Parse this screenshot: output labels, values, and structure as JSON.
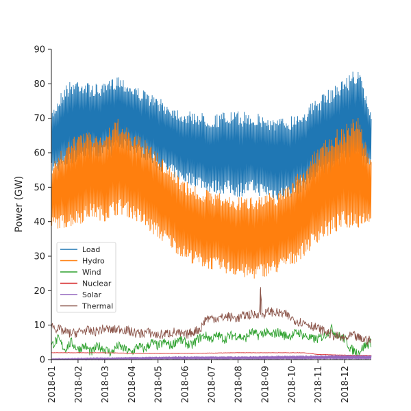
{
  "chart_data": {
    "type": "line",
    "title": "",
    "xlabel": "",
    "ylabel": "Power (GW)",
    "ylim": [
      0,
      90
    ],
    "yticks": [
      0,
      10,
      20,
      30,
      40,
      50,
      60,
      70,
      80,
      90
    ],
    "x_tick_labels": [
      "2018-01",
      "2018-02",
      "2018-03",
      "2018-04",
      "2018-05",
      "2018-06",
      "2018-07",
      "2018-08",
      "2018-09",
      "2018-10",
      "2018-11",
      "2018-12"
    ],
    "x_note": "x values are months of 2018 (0 = Jan 1, 12 = Dec 31); y values are power in GW. Hourly series shown as a weekly/daily envelope (min, max) plus a mid line for Wind/Thermal.",
    "legend_position": "left",
    "series": [
      {
        "name": "Load",
        "color": "#1f77b4",
        "envelope": [
          {
            "x": 0.0,
            "min": 54,
            "max": 72
          },
          {
            "x": 0.5,
            "min": 55,
            "max": 80
          },
          {
            "x": 1.0,
            "min": 57,
            "max": 82
          },
          {
            "x": 1.5,
            "min": 58,
            "max": 80
          },
          {
            "x": 2.0,
            "min": 58,
            "max": 80
          },
          {
            "x": 2.5,
            "min": 60,
            "max": 83
          },
          {
            "x": 3.0,
            "min": 60,
            "max": 80
          },
          {
            "x": 3.5,
            "min": 58,
            "max": 78
          },
          {
            "x": 4.0,
            "min": 55,
            "max": 76
          },
          {
            "x": 4.5,
            "min": 53,
            "max": 74
          },
          {
            "x": 5.0,
            "min": 51,
            "max": 72
          },
          {
            "x": 5.5,
            "min": 50,
            "max": 72
          },
          {
            "x": 6.0,
            "min": 48,
            "max": 71
          },
          {
            "x": 6.5,
            "min": 48,
            "max": 72
          },
          {
            "x": 7.0,
            "min": 47,
            "max": 72
          },
          {
            "x": 7.5,
            "min": 48,
            "max": 72
          },
          {
            "x": 8.0,
            "min": 47,
            "max": 71
          },
          {
            "x": 8.5,
            "min": 46,
            "max": 70
          },
          {
            "x": 9.0,
            "min": 47,
            "max": 71
          },
          {
            "x": 9.5,
            "min": 49,
            "max": 73
          },
          {
            "x": 10.0,
            "min": 52,
            "max": 76
          },
          {
            "x": 10.5,
            "min": 54,
            "max": 79
          },
          {
            "x": 11.0,
            "min": 56,
            "max": 82
          },
          {
            "x": 11.5,
            "min": 57,
            "max": 85
          },
          {
            "x": 12.0,
            "min": 55,
            "max": 72
          }
        ]
      },
      {
        "name": "Hydro",
        "color": "#ff7f0e",
        "envelope": [
          {
            "x": 0.0,
            "min": 38,
            "max": 57
          },
          {
            "x": 0.5,
            "min": 38,
            "max": 62
          },
          {
            "x": 1.0,
            "min": 39,
            "max": 66
          },
          {
            "x": 1.5,
            "min": 41,
            "max": 66
          },
          {
            "x": 2.0,
            "min": 40,
            "max": 66
          },
          {
            "x": 2.5,
            "min": 42,
            "max": 70
          },
          {
            "x": 3.0,
            "min": 41,
            "max": 66
          },
          {
            "x": 3.5,
            "min": 38,
            "max": 64
          },
          {
            "x": 4.0,
            "min": 35,
            "max": 60
          },
          {
            "x": 4.5,
            "min": 32,
            "max": 56
          },
          {
            "x": 5.0,
            "min": 29,
            "max": 52
          },
          {
            "x": 5.5,
            "min": 27,
            "max": 50
          },
          {
            "x": 6.0,
            "min": 26,
            "max": 49
          },
          {
            "x": 6.5,
            "min": 25,
            "max": 48
          },
          {
            "x": 7.0,
            "min": 24,
            "max": 47
          },
          {
            "x": 7.5,
            "min": 23,
            "max": 48
          },
          {
            "x": 8.0,
            "min": 24,
            "max": 48
          },
          {
            "x": 8.5,
            "min": 25,
            "max": 49
          },
          {
            "x": 9.0,
            "min": 27,
            "max": 52
          },
          {
            "x": 9.5,
            "min": 30,
            "max": 56
          },
          {
            "x": 10.0,
            "min": 34,
            "max": 62
          },
          {
            "x": 10.5,
            "min": 36,
            "max": 66
          },
          {
            "x": 11.0,
            "min": 38,
            "max": 68
          },
          {
            "x": 11.5,
            "min": 38,
            "max": 71
          },
          {
            "x": 12.0,
            "min": 40,
            "max": 58
          }
        ]
      },
      {
        "name": "Wind",
        "color": "#2ca02c",
        "line": [
          {
            "x": 0.0,
            "y": 4
          },
          {
            "x": 0.25,
            "y": 6
          },
          {
            "x": 0.5,
            "y": 3
          },
          {
            "x": 0.75,
            "y": 5
          },
          {
            "x": 1.0,
            "y": 3
          },
          {
            "x": 1.25,
            "y": 4
          },
          {
            "x": 1.5,
            "y": 2
          },
          {
            "x": 1.75,
            "y": 4
          },
          {
            "x": 2.0,
            "y": 3
          },
          {
            "x": 2.25,
            "y": 2
          },
          {
            "x": 2.5,
            "y": 4
          },
          {
            "x": 2.75,
            "y": 3
          },
          {
            "x": 3.0,
            "y": 2
          },
          {
            "x": 3.25,
            "y": 4
          },
          {
            "x": 3.5,
            "y": 3
          },
          {
            "x": 3.75,
            "y": 5
          },
          {
            "x": 4.0,
            "y": 4
          },
          {
            "x": 4.25,
            "y": 5
          },
          {
            "x": 4.5,
            "y": 4
          },
          {
            "x": 4.75,
            "y": 6
          },
          {
            "x": 5.0,
            "y": 5
          },
          {
            "x": 5.25,
            "y": 4
          },
          {
            "x": 5.5,
            "y": 6
          },
          {
            "x": 5.75,
            "y": 7
          },
          {
            "x": 6.0,
            "y": 6
          },
          {
            "x": 6.25,
            "y": 7
          },
          {
            "x": 6.5,
            "y": 6
          },
          {
            "x": 6.75,
            "y": 7
          },
          {
            "x": 7.0,
            "y": 7
          },
          {
            "x": 7.25,
            "y": 6
          },
          {
            "x": 7.5,
            "y": 8
          },
          {
            "x": 7.75,
            "y": 7
          },
          {
            "x": 8.0,
            "y": 8
          },
          {
            "x": 8.25,
            "y": 7
          },
          {
            "x": 8.5,
            "y": 8
          },
          {
            "x": 8.75,
            "y": 7
          },
          {
            "x": 9.0,
            "y": 7
          },
          {
            "x": 9.25,
            "y": 8
          },
          {
            "x": 9.5,
            "y": 7
          },
          {
            "x": 9.75,
            "y": 6
          },
          {
            "x": 10.0,
            "y": 6
          },
          {
            "x": 10.25,
            "y": 7
          },
          {
            "x": 10.5,
            "y": 9
          },
          {
            "x": 10.75,
            "y": 7
          },
          {
            "x": 11.0,
            "y": 6
          },
          {
            "x": 11.25,
            "y": 3
          },
          {
            "x": 11.5,
            "y": 2
          },
          {
            "x": 11.75,
            "y": 4
          },
          {
            "x": 12.0,
            "y": 5
          }
        ]
      },
      {
        "name": "Nuclear",
        "color": "#d62728",
        "line": [
          {
            "x": 0.0,
            "y": 2
          },
          {
            "x": 2.0,
            "y": 2
          },
          {
            "x": 3.5,
            "y": 1.8
          },
          {
            "x": 5.0,
            "y": 1.8
          },
          {
            "x": 7.0,
            "y": 2
          },
          {
            "x": 9.5,
            "y": 2
          },
          {
            "x": 10.0,
            "y": 1.5
          },
          {
            "x": 11.0,
            "y": 1.3
          },
          {
            "x": 12.0,
            "y": 1.2
          }
        ]
      },
      {
        "name": "Solar",
        "color": "#9467bd",
        "envelope": [
          {
            "x": 0.0,
            "min": 0,
            "max": 0.3
          },
          {
            "x": 1.0,
            "min": 0,
            "max": 0.4
          },
          {
            "x": 2.0,
            "min": 0,
            "max": 0.6
          },
          {
            "x": 3.0,
            "min": 0,
            "max": 0.8
          },
          {
            "x": 4.0,
            "min": 0,
            "max": 0.9
          },
          {
            "x": 5.0,
            "min": 0,
            "max": 1.0
          },
          {
            "x": 6.0,
            "min": 0,
            "max": 1.0
          },
          {
            "x": 7.0,
            "min": 0,
            "max": 1.0
          },
          {
            "x": 8.0,
            "min": 0,
            "max": 1.1
          },
          {
            "x": 9.0,
            "min": 0,
            "max": 1.2
          },
          {
            "x": 10.0,
            "min": 0,
            "max": 1.3
          },
          {
            "x": 11.0,
            "min": 0,
            "max": 1.4
          },
          {
            "x": 12.0,
            "min": 0,
            "max": 1.3
          }
        ]
      },
      {
        "name": "Thermal",
        "color": "#8c564b",
        "line": [
          {
            "x": 0.0,
            "y": 10
          },
          {
            "x": 0.2,
            "y": 9
          },
          {
            "x": 0.5,
            "y": 8
          },
          {
            "x": 0.8,
            "y": 7.5
          },
          {
            "x": 1.0,
            "y": 8
          },
          {
            "x": 1.3,
            "y": 8.5
          },
          {
            "x": 1.6,
            "y": 8
          },
          {
            "x": 2.0,
            "y": 9
          },
          {
            "x": 2.3,
            "y": 8.5
          },
          {
            "x": 2.6,
            "y": 9
          },
          {
            "x": 3.0,
            "y": 8
          },
          {
            "x": 3.3,
            "y": 7.5
          },
          {
            "x": 3.6,
            "y": 8
          },
          {
            "x": 4.0,
            "y": 7
          },
          {
            "x": 4.3,
            "y": 7.5
          },
          {
            "x": 4.6,
            "y": 8
          },
          {
            "x": 5.0,
            "y": 7
          },
          {
            "x": 5.3,
            "y": 8
          },
          {
            "x": 5.6,
            "y": 9
          },
          {
            "x": 5.8,
            "y": 12
          },
          {
            "x": 6.0,
            "y": 12
          },
          {
            "x": 6.3,
            "y": 12
          },
          {
            "x": 6.6,
            "y": 12.5
          },
          {
            "x": 7.0,
            "y": 12
          },
          {
            "x": 7.3,
            "y": 13
          },
          {
            "x": 7.6,
            "y": 13
          },
          {
            "x": 7.8,
            "y": 13.5
          },
          {
            "x": 7.85,
            "y": 21
          },
          {
            "x": 7.9,
            "y": 13
          },
          {
            "x": 8.2,
            "y": 14
          },
          {
            "x": 8.5,
            "y": 13.5
          },
          {
            "x": 8.8,
            "y": 13
          },
          {
            "x": 9.0,
            "y": 12
          },
          {
            "x": 9.3,
            "y": 11
          },
          {
            "x": 9.6,
            "y": 10.5
          },
          {
            "x": 10.0,
            "y": 9
          },
          {
            "x": 10.3,
            "y": 8
          },
          {
            "x": 10.6,
            "y": 7
          },
          {
            "x": 11.0,
            "y": 6
          },
          {
            "x": 11.3,
            "y": 7
          },
          {
            "x": 11.6,
            "y": 6
          },
          {
            "x": 12.0,
            "y": 5.5
          }
        ]
      }
    ]
  }
}
